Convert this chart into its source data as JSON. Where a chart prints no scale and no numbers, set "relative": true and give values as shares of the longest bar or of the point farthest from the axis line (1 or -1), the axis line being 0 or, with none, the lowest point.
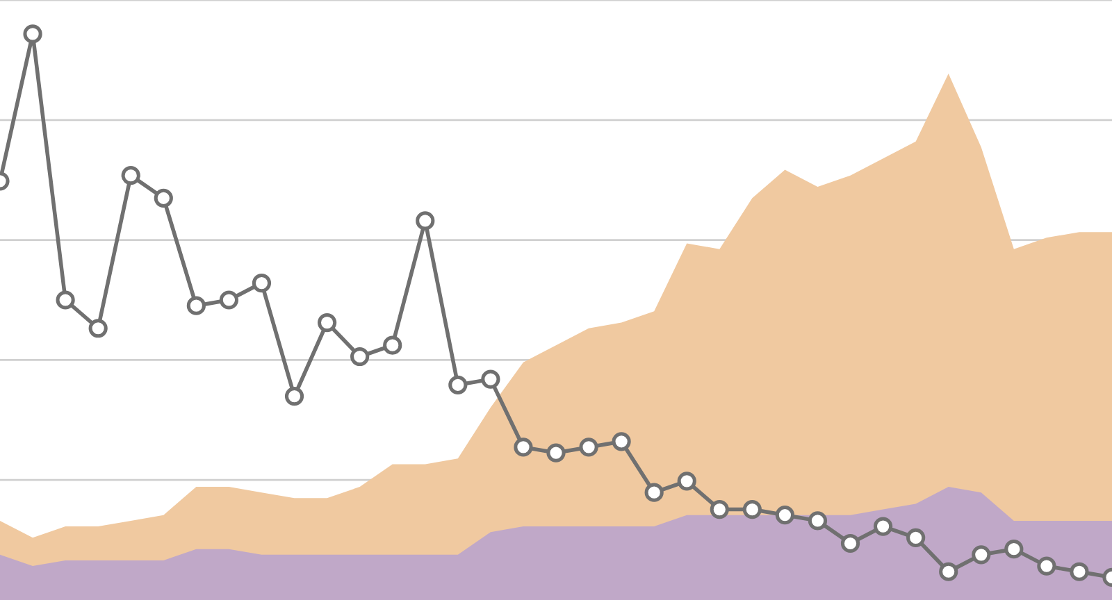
{
  "chart_data": {
    "type": "area",
    "relative": true,
    "categories": [
      null,
      null,
      null,
      null,
      null,
      null,
      null,
      null,
      null,
      null,
      null,
      null,
      null,
      null,
      null,
      null,
      null,
      null,
      null,
      null,
      null,
      null,
      null,
      null,
      null,
      null,
      null,
      null,
      null,
      null,
      null,
      null,
      null,
      null,
      null
    ],
    "grid": "y",
    "series": [
      {
        "type": "area",
        "color": "#f0c9a0",
        "values": [
          0.14,
          0.11,
          0.13,
          0.13,
          0.14,
          0.15,
          0.2,
          0.2,
          0.19,
          0.18,
          0.18,
          0.2,
          0.24,
          0.24,
          0.25,
          0.34,
          0.42,
          0.45,
          0.48,
          0.49,
          0.51,
          0.63,
          0.62,
          0.71,
          0.76,
          0.73,
          0.75,
          0.78,
          0.81,
          0.93,
          0.8,
          0.62,
          0.64,
          0.65,
          0.65
        ]
      },
      {
        "type": "area",
        "color": "#c0a8c8",
        "values": [
          0.08,
          0.06,
          0.07,
          0.07,
          0.07,
          0.07,
          0.09,
          0.09,
          0.08,
          0.08,
          0.08,
          0.08,
          0.08,
          0.08,
          0.08,
          0.12,
          0.13,
          0.13,
          0.13,
          0.13,
          0.13,
          0.15,
          0.15,
          0.15,
          0.15,
          0.15,
          0.15,
          0.16,
          0.17,
          0.2,
          0.19,
          0.14,
          0.14,
          0.14,
          0.14
        ]
      },
      {
        "type": "line",
        "color": "#707070",
        "marker": "circle",
        "line_style": "solid",
        "values": [
          0.74,
          1.0,
          0.53,
          0.48,
          0.75,
          0.71,
          0.52,
          0.53,
          0.56,
          0.36,
          0.49,
          0.43,
          0.45,
          0.67,
          0.38,
          0.39,
          0.27,
          0.26,
          0.27,
          0.28,
          0.19,
          0.21,
          0.16,
          0.16,
          0.15,
          0.14,
          0.1,
          0.13,
          0.11,
          0.05,
          0.08,
          0.09,
          0.06,
          0.05,
          0.04
        ]
      }
    ]
  }
}
